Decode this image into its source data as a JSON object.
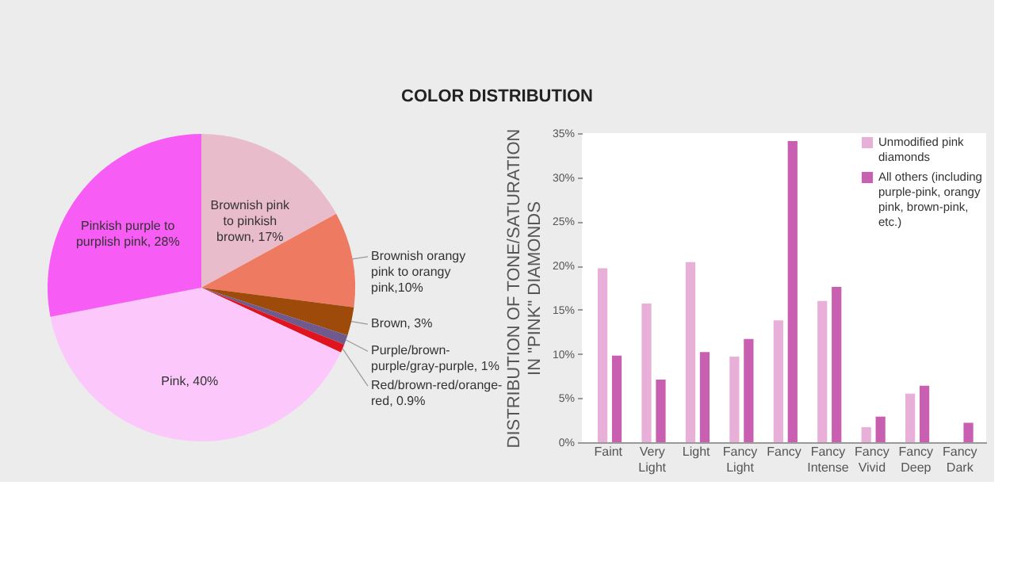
{
  "chart_data": [
    {
      "type": "pie",
      "categories": [
        "Brownish pink to pinkish brown, 17%",
        "Brownish orangy pink to orangy pink,10%",
        "Brown, 3%",
        "Purple/brown-purple/gray-purple, 1%",
        "Red/brown-red/orange-red, 0.9%",
        "Pink, 40%",
        "Pinkish purple to purplish pink, 28%"
      ],
      "values": [
        17,
        10,
        3,
        1,
        0.9,
        40,
        28
      ],
      "colors": [
        "#e9bccb",
        "#ef7a62",
        "#9e4a0a",
        "#6e5a8c",
        "#e0141e",
        "#fcc8fc",
        "#f75cf5"
      ]
    },
    {
      "type": "bar",
      "title": "COLOR DISTRIBUTION",
      "ylabel": "DISTRIBUTION OF TONE/SATURATION IN \"PINK\" DIAMONDS",
      "categories": [
        "Faint",
        "Very Light",
        "Light",
        "Fancy Light",
        "Fancy",
        "Fancy Intense",
        "Fancy Vivid",
        "Fancy Deep",
        "Fancy Dark"
      ],
      "series": [
        {
          "name": "Unmodified pink diamonds",
          "color": "#e8b0d8",
          "values": [
            19.7,
            15.7,
            20.4,
            9.7,
            13.8,
            16.0,
            1.7,
            5.5,
            null
          ]
        },
        {
          "name": "All others (including purple-pink, orangy pink, brown-pink, etc.)",
          "color": "#c95fb0",
          "values": [
            9.8,
            7.1,
            10.2,
            11.7,
            34.1,
            17.6,
            2.9,
            6.4,
            2.2
          ]
        }
      ],
      "ylim": [
        0,
        35
      ],
      "yticks": [
        {
          "value": 0,
          "label": "0%"
        },
        {
          "value": 5,
          "label": "5%"
        },
        {
          "value": 10,
          "label": "10%"
        },
        {
          "value": 15,
          "label": "15%"
        },
        {
          "value": 20,
          "label": "20%"
        },
        {
          "value": 25,
          "label": "25%"
        },
        {
          "value": 30,
          "label": "30%"
        },
        {
          "value": 35,
          "label": "35%"
        }
      ],
      "grid": false,
      "legend": "top right"
    }
  ]
}
